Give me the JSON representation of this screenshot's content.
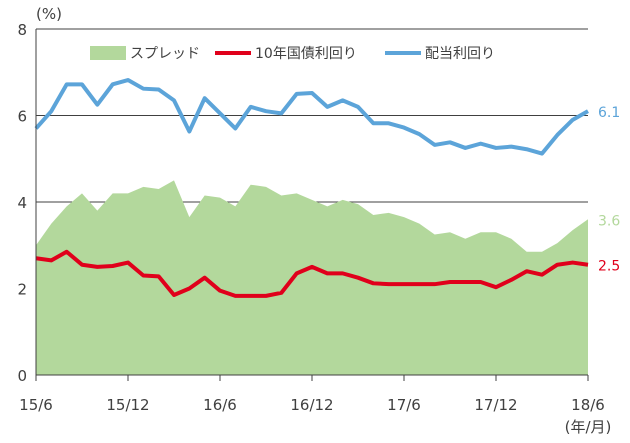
{
  "chart_data": {
    "type": "line",
    "y_unit_label": "(%)",
    "x_unit_label": "(年/月)",
    "ylim": [
      0,
      8
    ],
    "y_ticks": [
      "0",
      "2",
      "4",
      "6",
      "8"
    ],
    "x_range": [
      0,
      36
    ],
    "x_ticks": [
      {
        "x": 0,
        "label": "15/6"
      },
      {
        "x": 6,
        "label": "15/12"
      },
      {
        "x": 12,
        "label": "16/6"
      },
      {
        "x": 18,
        "label": "16/12"
      },
      {
        "x": 24,
        "label": "17/6"
      },
      {
        "x": 30,
        "label": "17/12"
      },
      {
        "x": 36,
        "label": "18/6"
      }
    ],
    "grid": "horizontal",
    "legend_position": "top",
    "x": [
      0,
      1,
      2,
      3,
      4,
      5,
      6,
      7,
      8,
      9,
      10,
      11,
      12,
      13,
      14,
      15,
      16,
      17,
      18,
      19,
      20,
      21,
      22,
      23,
      24,
      25,
      26,
      27,
      28,
      29,
      30,
      31,
      32,
      33,
      34,
      35,
      36
    ],
    "series": [
      {
        "name": "スプレッド",
        "kind": "area",
        "color": "#b3d89c",
        "values": [
          3.0,
          3.5,
          3.9,
          4.2,
          3.8,
          4.2,
          4.2,
          4.35,
          4.3,
          4.5,
          3.65,
          4.15,
          4.1,
          3.9,
          4.4,
          4.35,
          4.15,
          4.2,
          4.05,
          3.9,
          4.05,
          3.95,
          3.7,
          3.75,
          3.65,
          3.5,
          3.25,
          3.3,
          3.15,
          3.3,
          3.3,
          3.15,
          2.85,
          2.85,
          3.05,
          3.35,
          3.6
        ],
        "end_label": "3.6"
      },
      {
        "name": "10年国債利回り",
        "kind": "line",
        "color": "#e0001b",
        "values": [
          2.7,
          2.65,
          2.85,
          2.55,
          2.5,
          2.52,
          2.6,
          2.3,
          2.28,
          1.85,
          2.0,
          2.25,
          1.95,
          1.83,
          1.83,
          1.83,
          1.9,
          2.35,
          2.5,
          2.35,
          2.35,
          2.25,
          2.12,
          2.1,
          2.1,
          2.1,
          2.1,
          2.15,
          2.15,
          2.15,
          2.03,
          2.2,
          2.4,
          2.32,
          2.55,
          2.6,
          2.55
        ],
        "end_label": "2.5"
      },
      {
        "name": "配当利回り",
        "kind": "line",
        "color": "#5ca4d9",
        "values": [
          5.7,
          6.1,
          6.72,
          6.72,
          6.25,
          6.72,
          6.82,
          6.62,
          6.6,
          6.35,
          5.63,
          6.4,
          6.05,
          5.7,
          6.2,
          6.1,
          6.05,
          6.5,
          6.52,
          6.2,
          6.35,
          6.2,
          5.82,
          5.82,
          5.72,
          5.57,
          5.32,
          5.38,
          5.25,
          5.35,
          5.25,
          5.28,
          5.22,
          5.12,
          5.55,
          5.9,
          6.1
        ],
        "end_label": "6.1"
      }
    ]
  }
}
